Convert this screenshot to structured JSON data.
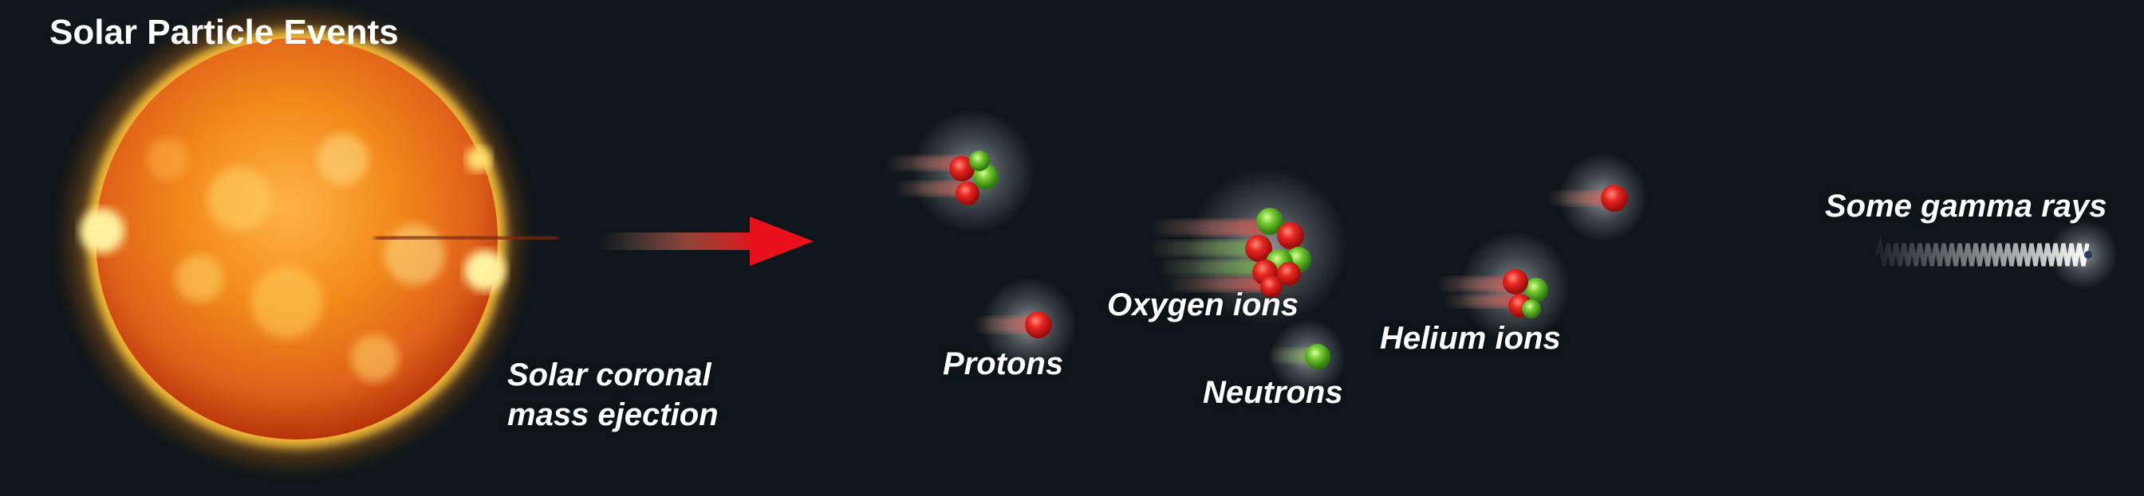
{
  "title": "Solar Particle Events",
  "labels": {
    "cme_line1": "Solar coronal",
    "cme_line2": "mass ejection",
    "protons": "Protons",
    "oxygen": "Oxygen ions",
    "neutrons": "Neutrons",
    "helium": "Helium ions",
    "gamma": "Some gamma rays"
  },
  "colors": {
    "background": "#0f161b",
    "arrow": "#e8101a",
    "proton": "#e62620",
    "neutron": "#6fc52e",
    "sun_core": "#f28a1a",
    "sun_rim": "#c43a06",
    "text": "#ffffff"
  },
  "icons": {
    "sun": "sun-image",
    "arrow": "red-arrow",
    "proton": "red-sphere",
    "neutron": "green-sphere",
    "gamma": "wave-icon"
  }
}
